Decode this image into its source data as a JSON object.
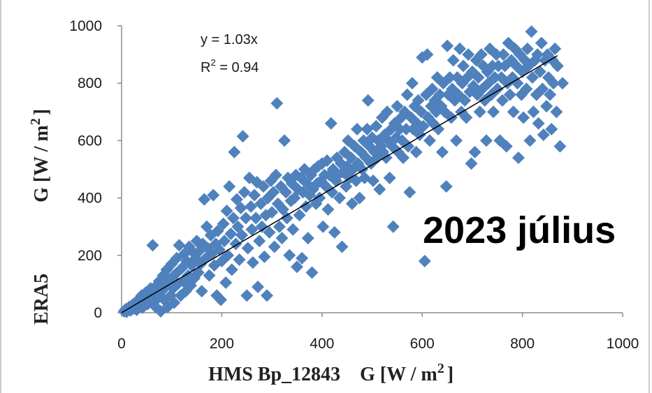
{
  "chart_data": {
    "type": "scatter",
    "annotation": {
      "equation": "y = 1.03x",
      "r2_prefix": "R",
      "r2_sup": "2",
      "r2_suffix": " = 0.94"
    },
    "overlay_label": "2023 július",
    "xlabel": {
      "main": "HMS Bp_12843    G [W / m",
      "sup": "2",
      "end": "]"
    },
    "ylabel": {
      "prefix": "ERA5",
      "main": "G [W / m",
      "sup": "2",
      "end": "]"
    },
    "xlim": [
      0,
      1000
    ],
    "ylim": [
      0,
      1000
    ],
    "xticks": [
      "0",
      "200",
      "400",
      "600",
      "800",
      "1000"
    ],
    "yticks": [
      "0",
      "200",
      "400",
      "600",
      "800",
      "1000"
    ],
    "trendline": {
      "slope": 1.03,
      "x_range": [
        0,
        870
      ],
      "color": "#000000"
    },
    "marker_color": "#4f81bd",
    "grid": false,
    "points": [
      [
        5,
        5
      ],
      [
        8,
        12
      ],
      [
        10,
        3
      ],
      [
        15,
        20
      ],
      [
        18,
        8
      ],
      [
        22,
        28
      ],
      [
        25,
        15
      ],
      [
        28,
        35
      ],
      [
        30,
        10
      ],
      [
        33,
        45
      ],
      [
        36,
        25
      ],
      [
        40,
        60
      ],
      [
        42,
        18
      ],
      [
        45,
        38
      ],
      [
        48,
        70
      ],
      [
        52,
        30
      ],
      [
        55,
        55
      ],
      [
        58,
        85
      ],
      [
        60,
        40
      ],
      [
        62,
        235
      ],
      [
        65,
        65
      ],
      [
        68,
        20
      ],
      [
        70,
        95
      ],
      [
        72,
        50
      ],
      [
        75,
        110
      ],
      [
        78,
        5
      ],
      [
        80,
        75
      ],
      [
        83,
        130
      ],
      [
        85,
        45
      ],
      [
        88,
        90
      ],
      [
        90,
        150
      ],
      [
        92,
        20
      ],
      [
        95,
        115
      ],
      [
        98,
        60
      ],
      [
        100,
        170
      ],
      [
        103,
        85
      ],
      [
        105,
        35
      ],
      [
        108,
        135
      ],
      [
        110,
        190
      ],
      [
        112,
        100
      ],
      [
        115,
        235
      ],
      [
        118,
        60
      ],
      [
        120,
        155
      ],
      [
        123,
        110
      ],
      [
        125,
        205
      ],
      [
        128,
        75
      ],
      [
        130,
        180
      ],
      [
        133,
        130
      ],
      [
        135,
        230
      ],
      [
        138,
        95
      ],
      [
        140,
        165
      ],
      [
        143,
        210
      ],
      [
        145,
        120
      ],
      [
        148,
        190
      ],
      [
        150,
        250
      ],
      [
        153,
        140
      ],
      [
        155,
        215
      ],
      [
        158,
        170
      ],
      [
        160,
        75
      ],
      [
        162,
        240
      ],
      [
        165,
        395
      ],
      [
        168,
        190
      ],
      [
        170,
        300
      ],
      [
        172,
        225
      ],
      [
        175,
        130
      ],
      [
        178,
        270
      ],
      [
        180,
        205
      ],
      [
        183,
        410
      ],
      [
        185,
        165
      ],
      [
        188,
        240
      ],
      [
        190,
        60
      ],
      [
        192,
        285
      ],
      [
        195,
        220
      ],
      [
        198,
        45
      ],
      [
        200,
        180
      ],
      [
        203,
        310
      ],
      [
        205,
        250
      ],
      [
        208,
        105
      ],
      [
        210,
        355
      ],
      [
        212,
        200
      ],
      [
        215,
        440
      ],
      [
        218,
        275
      ],
      [
        220,
        150
      ],
      [
        223,
        330
      ],
      [
        225,
        560
      ],
      [
        228,
        240
      ],
      [
        230,
        395
      ],
      [
        232,
        300
      ],
      [
        235,
        185
      ],
      [
        238,
        365
      ],
      [
        240,
        270
      ],
      [
        242,
        615
      ],
      [
        245,
        420
      ],
      [
        248,
        330
      ],
      [
        250,
        60
      ],
      [
        252,
        225
      ],
      [
        255,
        470
      ],
      [
        258,
        370
      ],
      [
        260,
        290
      ],
      [
        262,
        175
      ],
      [
        265,
        410
      ],
      [
        268,
        330
      ],
      [
        270,
        455
      ],
      [
        272,
        90
      ],
      [
        275,
        250
      ],
      [
        278,
        380
      ],
      [
        280,
        300
      ],
      [
        283,
        440
      ],
      [
        285,
        195
      ],
      [
        288,
        340
      ],
      [
        290,
        60
      ],
      [
        292,
        400
      ],
      [
        295,
        280
      ],
      [
        298,
        460
      ],
      [
        300,
        350
      ],
      [
        303,
        420
      ],
      [
        305,
        230
      ],
      [
        308,
        480
      ],
      [
        310,
        730
      ],
      [
        312,
        380
      ],
      [
        315,
        300
      ],
      [
        318,
        440
      ],
      [
        320,
        260
      ],
      [
        322,
        360
      ],
      [
        325,
        600
      ],
      [
        328,
        420
      ],
      [
        330,
        330
      ],
      [
        332,
        470
      ],
      [
        335,
        200
      ],
      [
        338,
        390
      ],
      [
        340,
        450
      ],
      [
        342,
        290
      ],
      [
        345,
        400
      ],
      [
        348,
        480
      ],
      [
        350,
        160
      ],
      [
        352,
        430
      ],
      [
        355,
        340
      ],
      [
        358,
        470
      ],
      [
        360,
        190
      ],
      [
        362,
        420
      ],
      [
        365,
        500
      ],
      [
        368,
        370
      ],
      [
        370,
        450
      ],
      [
        372,
        260
      ],
      [
        375,
        410
      ],
      [
        378,
        480
      ],
      [
        380,
        140
      ],
      [
        382,
        430
      ],
      [
        385,
        500
      ],
      [
        388,
        380
      ],
      [
        390,
        450
      ],
      [
        392,
        510
      ],
      [
        395,
        400
      ],
      [
        398,
        460
      ],
      [
        400,
        520
      ],
      [
        402,
        300
      ],
      [
        405,
        480
      ],
      [
        408,
        440
      ],
      [
        410,
        530
      ],
      [
        412,
        360
      ],
      [
        415,
        480
      ],
      [
        418,
        660
      ],
      [
        420,
        420
      ],
      [
        422,
        500
      ],
      [
        425,
        280
      ],
      [
        428,
        460
      ],
      [
        430,
        540
      ],
      [
        432,
        480
      ],
      [
        435,
        400
      ],
      [
        438,
        520
      ],
      [
        440,
        230
      ],
      [
        442,
        490
      ],
      [
        445,
        560
      ],
      [
        448,
        440
      ],
      [
        450,
        510
      ],
      [
        452,
        600
      ],
      [
        455,
        470
      ],
      [
        458,
        540
      ],
      [
        460,
        380
      ],
      [
        462,
        500
      ],
      [
        465,
        580
      ],
      [
        468,
        460
      ],
      [
        470,
        640
      ],
      [
        472,
        520
      ],
      [
        475,
        400
      ],
      [
        478,
        560
      ],
      [
        480,
        500
      ],
      [
        483,
        600
      ],
      [
        485,
        470
      ],
      [
        488,
        540
      ],
      [
        490,
        640
      ],
      [
        492,
        740
      ],
      [
        495,
        580
      ],
      [
        498,
        520
      ],
      [
        500,
        610
      ],
      [
        502,
        460
      ],
      [
        505,
        560
      ],
      [
        508,
        650
      ],
      [
        510,
        540
      ],
      [
        512,
        600
      ],
      [
        515,
        430
      ],
      [
        518,
        580
      ],
      [
        520,
        680
      ],
      [
        522,
        560
      ],
      [
        525,
        620
      ],
      [
        528,
        540
      ],
      [
        530,
        700
      ],
      [
        532,
        600
      ],
      [
        535,
        470
      ],
      [
        538,
        640
      ],
      [
        540,
        580
      ],
      [
        542,
        300
      ],
      [
        545,
        660
      ],
      [
        548,
        610
      ],
      [
        550,
        720
      ],
      [
        552,
        560
      ],
      [
        555,
        640
      ],
      [
        558,
        680
      ],
      [
        560,
        600
      ],
      [
        562,
        540
      ],
      [
        565,
        700
      ],
      [
        568,
        640
      ],
      [
        570,
        760
      ],
      [
        572,
        580
      ],
      [
        575,
        420
      ],
      [
        578,
        680
      ],
      [
        580,
        800
      ],
      [
        582,
        640
      ],
      [
        585,
        720
      ],
      [
        588,
        560
      ],
      [
        590,
        660
      ],
      [
        592,
        740
      ],
      [
        595,
        620
      ],
      [
        598,
        700
      ],
      [
        600,
        890
      ],
      [
        602,
        650
      ],
      [
        605,
        180
      ],
      [
        608,
        760
      ],
      [
        610,
        900
      ],
      [
        612,
        680
      ],
      [
        615,
        600
      ],
      [
        618,
        720
      ],
      [
        620,
        780
      ],
      [
        622,
        660
      ],
      [
        625,
        740
      ],
      [
        628,
        700
      ],
      [
        630,
        820
      ],
      [
        632,
        640
      ],
      [
        635,
        760
      ],
      [
        638,
        720
      ],
      [
        640,
        560
      ],
      [
        642,
        800
      ],
      [
        645,
        700
      ],
      [
        648,
        440
      ],
      [
        650,
        930
      ],
      [
        652,
        760
      ],
      [
        655,
        820
      ],
      [
        658,
        680
      ],
      [
        660,
        780
      ],
      [
        662,
        880
      ],
      [
        665,
        740
      ],
      [
        668,
        600
      ],
      [
        670,
        820
      ],
      [
        672,
        760
      ],
      [
        675,
        920
      ],
      [
        678,
        700
      ],
      [
        680,
        800
      ],
      [
        682,
        860
      ],
      [
        685,
        740
      ],
      [
        688,
        680
      ],
      [
        690,
        820
      ],
      [
        692,
        900
      ],
      [
        695,
        770
      ],
      [
        698,
        520
      ],
      [
        700,
        840
      ],
      [
        702,
        790
      ],
      [
        705,
        560
      ],
      [
        708,
        880
      ],
      [
        710,
        760
      ],
      [
        712,
        820
      ],
      [
        715,
        700
      ],
      [
        718,
        900
      ],
      [
        720,
        780
      ],
      [
        722,
        860
      ],
      [
        725,
        740
      ],
      [
        728,
        600
      ],
      [
        730,
        840
      ],
      [
        732,
        800
      ],
      [
        735,
        920
      ],
      [
        738,
        760
      ],
      [
        740,
        860
      ],
      [
        742,
        700
      ],
      [
        745,
        820
      ],
      [
        748,
        900
      ],
      [
        750,
        780
      ],
      [
        752,
        860
      ],
      [
        755,
        600
      ],
      [
        758,
        820
      ],
      [
        760,
        740
      ],
      [
        762,
        900
      ],
      [
        765,
        860
      ],
      [
        768,
        580
      ],
      [
        770,
        800
      ],
      [
        772,
        940
      ],
      [
        775,
        760
      ],
      [
        778,
        880
      ],
      [
        780,
        820
      ],
      [
        782,
        700
      ],
      [
        785,
        920
      ],
      [
        788,
        860
      ],
      [
        790,
        800
      ],
      [
        792,
        540
      ],
      [
        795,
        900
      ],
      [
        798,
        760
      ],
      [
        800,
        840
      ],
      [
        802,
        680
      ],
      [
        805,
        880
      ],
      [
        808,
        780
      ],
      [
        810,
        920
      ],
      [
        812,
        860
      ],
      [
        815,
        600
      ],
      [
        818,
        980
      ],
      [
        820,
        820
      ],
      [
        822,
        700
      ],
      [
        825,
        880
      ],
      [
        828,
        760
      ],
      [
        830,
        900
      ],
      [
        832,
        660
      ],
      [
        835,
        840
      ],
      [
        838,
        940
      ],
      [
        840,
        780
      ],
      [
        842,
        620
      ],
      [
        845,
        880
      ],
      [
        848,
        720
      ],
      [
        850,
        900
      ],
      [
        852,
        820
      ],
      [
        855,
        760
      ],
      [
        858,
        640
      ],
      [
        860,
        880
      ],
      [
        862,
        800
      ],
      [
        865,
        920
      ],
      [
        868,
        700
      ],
      [
        870,
        860
      ],
      [
        875,
        580
      ],
      [
        880,
        800
      ]
    ]
  }
}
